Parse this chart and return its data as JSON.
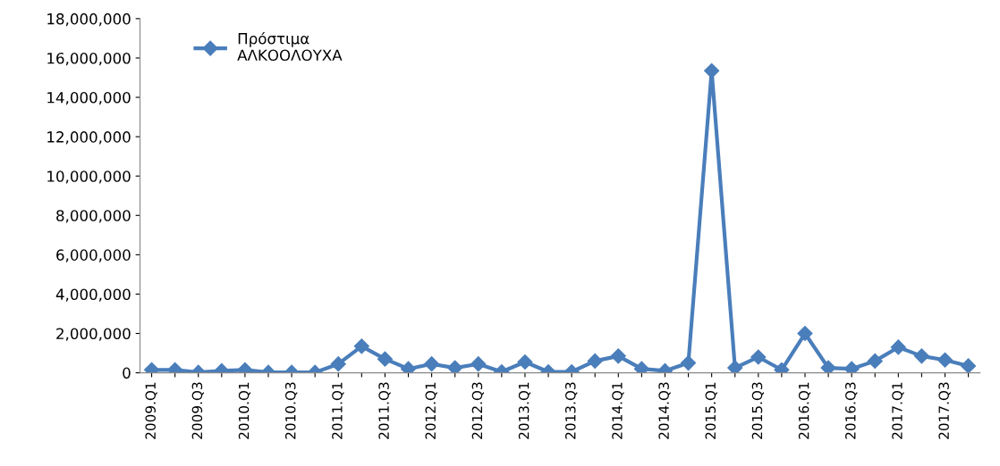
{
  "chart_data": {
    "type": "line",
    "categories": [
      "2009.Q1",
      null,
      "2009.Q3",
      null,
      "2010.Q1",
      null,
      "2010.Q3",
      null,
      "2011.Q1",
      null,
      "2011.Q3",
      null,
      "2012.Q1",
      null,
      "2012.Q3",
      null,
      "2013.Q1",
      null,
      "2013.Q3",
      null,
      "2014.Q1",
      null,
      "2014.Q3",
      null,
      "2015.Q1",
      null,
      "2015.Q3",
      null,
      "2016.Q1",
      null,
      "2016.Q3",
      null,
      "2017.Q1",
      null,
      "2017.Q3",
      null
    ],
    "series": [
      {
        "name": "Πρόστιμα ΑΛΚΟΟΛΟΥΧΑ",
        "color": "#4a7ebb",
        "values": [
          150000,
          150000,
          20000,
          100000,
          150000,
          20000,
          20000,
          20000,
          450000,
          1350000,
          700000,
          200000,
          450000,
          250000,
          450000,
          50000,
          550000,
          50000,
          50000,
          600000,
          850000,
          200000,
          100000,
          500000,
          15350000,
          250000,
          800000,
          150000,
          2000000,
          250000,
          200000,
          600000,
          1300000,
          850000,
          650000,
          350000
        ]
      }
    ],
    "ylim": [
      0,
      18000000
    ],
    "yticks": [
      {
        "value": 0,
        "label": "0"
      },
      {
        "value": 2000000,
        "label": "2,000,000"
      },
      {
        "value": 4000000,
        "label": "4,000,000"
      },
      {
        "value": 6000000,
        "label": "6,000,000"
      },
      {
        "value": 8000000,
        "label": "8,000,000"
      },
      {
        "value": 10000000,
        "label": "10,000,000"
      },
      {
        "value": 12000000,
        "label": "12,000,000"
      },
      {
        "value": 14000000,
        "label": "14,000,000"
      },
      {
        "value": 16000000,
        "label": "16,000,000"
      },
      {
        "value": 18000000,
        "label": "18,000,000"
      }
    ],
    "marker": "diamond",
    "line_style": "solid",
    "legend": "top left",
    "grid": false
  }
}
